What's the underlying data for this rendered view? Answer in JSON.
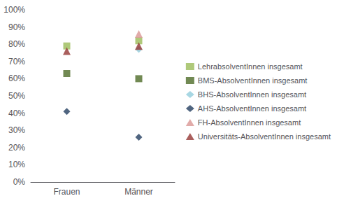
{
  "chart_data": {
    "type": "scatter",
    "categories": [
      "Frauen",
      "Männer"
    ],
    "series": [
      {
        "name": "LehrabsolventInnen insgesamt",
        "values": [
          0.79,
          0.82
        ],
        "color": "#9BBB59",
        "marker": "square"
      },
      {
        "name": "BMS-AbsolventInnen insgesamt",
        "values": [
          0.63,
          0.6
        ],
        "color": "#4E6B28",
        "marker": "square"
      },
      {
        "name": "BHS-AbsolventInnen insgesamt",
        "values": [
          null,
          0.77
        ],
        "color": "#92CDDC",
        "marker": "diamond"
      },
      {
        "name": "AHS-AbsolventInnen insgesamt",
        "values": [
          0.41,
          0.26
        ],
        "color": "#243F60",
        "marker": "diamond"
      },
      {
        "name": "FH-AbsolventInnen insgesamt",
        "values": [
          null,
          0.86
        ],
        "color": "#DA9694",
        "marker": "triangle"
      },
      {
        "name": "Universitäts-AbsolventInnen insgesamt",
        "values": [
          0.76,
          0.79
        ],
        "color": "#953735",
        "marker": "triangle"
      }
    ],
    "ylim": [
      0.0,
      1.0
    ],
    "yticks": [
      {
        "value": 0.0,
        "label": "0%"
      },
      {
        "value": 0.1,
        "label": "10%"
      },
      {
        "value": 0.2,
        "label": "20%"
      },
      {
        "value": 0.3,
        "label": "30%"
      },
      {
        "value": 0.4,
        "label": "40%"
      },
      {
        "value": 0.5,
        "label": "50%"
      },
      {
        "value": 0.6,
        "label": "60%"
      },
      {
        "value": 0.7,
        "label": "70%"
      },
      {
        "value": 0.8,
        "label": "80%"
      },
      {
        "value": 0.9,
        "label": "90%"
      },
      {
        "value": 1.0,
        "label": "100%"
      }
    ],
    "grid": false,
    "legend": "right"
  }
}
